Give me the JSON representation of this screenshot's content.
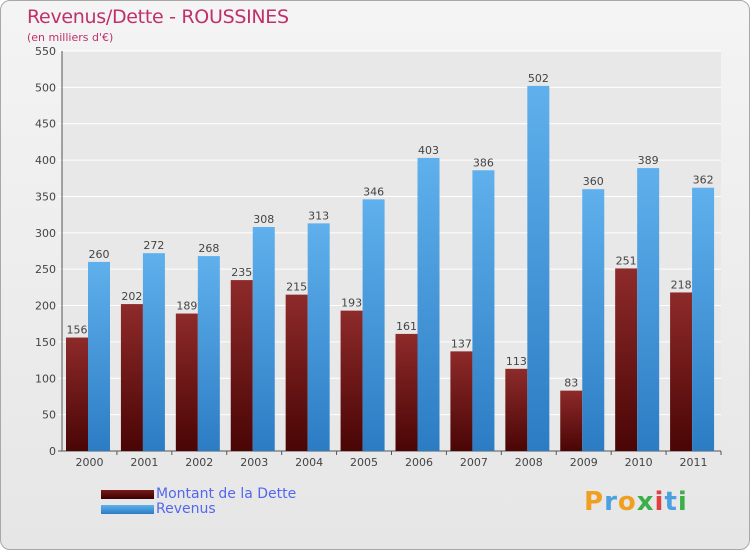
{
  "chart_data": {
    "type": "bar",
    "title": "Revenus/Dette - ROUSSINES",
    "subtitle": "(en milliers d'€)",
    "categories": [
      "2000",
      "2001",
      "2002",
      "2003",
      "2004",
      "2005",
      "2006",
      "2007",
      "2008",
      "2009",
      "2010",
      "2011"
    ],
    "series": [
      {
        "name": "Montant de la Dette",
        "color": "#7a1a1a",
        "values": [
          156,
          202,
          189,
          235,
          215,
          193,
          161,
          137,
          113,
          83,
          251,
          218
        ]
      },
      {
        "name": "Revenus",
        "color": "#4a9fe0",
        "values": [
          260,
          272,
          268,
          308,
          313,
          346,
          403,
          386,
          502,
          360,
          389,
          362
        ]
      }
    ],
    "ylim": [
      0,
      550
    ],
    "yticks": [
      0,
      50,
      100,
      150,
      200,
      250,
      300,
      350,
      400,
      450,
      500,
      550
    ],
    "grid": true,
    "legend_position": "bottom-left"
  },
  "legend": {
    "items": [
      {
        "label": "Montant de la Dette",
        "color": "#6b0f0f"
      },
      {
        "label": "Revenus",
        "color": "#4a9fe0"
      }
    ]
  },
  "logo": {
    "text": "Proxiti"
  }
}
